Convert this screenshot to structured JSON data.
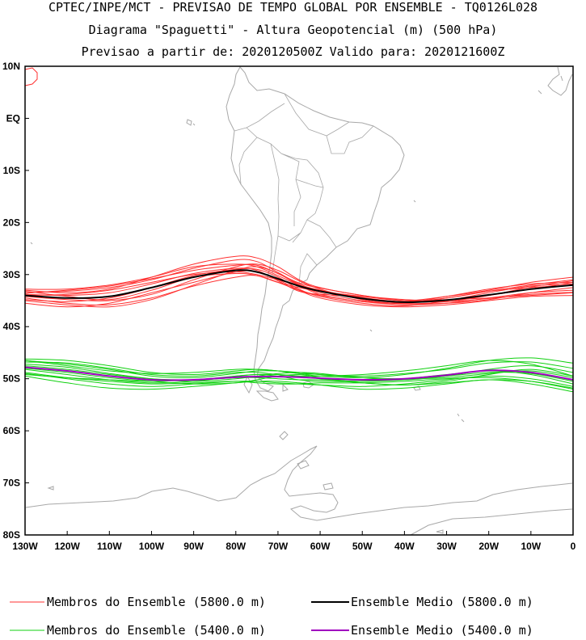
{
  "header": {
    "line1": "CPTEC/INPE/MCT - PREVISAO DE TEMPO GLOBAL POR ENSEMBLE - TQ0126L028",
    "line2": "Diagrama \"Spaguetti\" - Altura Geopotencial (m) (500 hPa)",
    "line3": "Previsao a partir de: 2020120500Z  Valido para: 2020121600Z"
  },
  "colors": {
    "members_5800": "#ff3030",
    "mean_5800": "#000000",
    "members_5400": "#10d010",
    "mean_5400": "#a000c0",
    "coast": "#a8a8a8"
  },
  "chart_data": {
    "type": "line",
    "title": "Diagrama \"Spaguetti\" - Altura Geopotencial (m) (500 hPa)",
    "map": "South America / South Atlantic",
    "xlim": [
      -130,
      0
    ],
    "ylim": [
      -80,
      10
    ],
    "x_ticks": [
      {
        "value": -130,
        "label": "130W"
      },
      {
        "value": -120,
        "label": "120W"
      },
      {
        "value": -110,
        "label": "110W"
      },
      {
        "value": -100,
        "label": "100W"
      },
      {
        "value": -90,
        "label": "90W"
      },
      {
        "value": -80,
        "label": "80W"
      },
      {
        "value": -70,
        "label": "70W"
      },
      {
        "value": -60,
        "label": "60W"
      },
      {
        "value": -50,
        "label": "50W"
      },
      {
        "value": -40,
        "label": "40W"
      },
      {
        "value": -30,
        "label": "30W"
      },
      {
        "value": -20,
        "label": "20W"
      },
      {
        "value": -10,
        "label": "10W"
      },
      {
        "value": 0,
        "label": "0"
      }
    ],
    "y_ticks": [
      {
        "value": 10,
        "label": "10N"
      },
      {
        "value": 0,
        "label": "EQ"
      },
      {
        "value": -10,
        "label": "10S"
      },
      {
        "value": -20,
        "label": "20S"
      },
      {
        "value": -30,
        "label": "30S"
      },
      {
        "value": -40,
        "label": "40S"
      },
      {
        "value": -50,
        "label": "50S"
      },
      {
        "value": -60,
        "label": "60S"
      },
      {
        "value": -70,
        "label": "70S"
      },
      {
        "value": -80,
        "label": "80S"
      }
    ],
    "x": [
      -130,
      -120,
      -110,
      -100,
      -90,
      -80,
      -75,
      -70,
      -65,
      -60,
      -50,
      -40,
      -30,
      -20,
      -10,
      0
    ],
    "series": [
      {
        "name": "Ensemble Medio (5800.0 m)",
        "group": "mean5800",
        "values": [
          -34,
          -34.5,
          -34.2,
          -32.5,
          -30.5,
          -29.2,
          -29.5,
          -30.8,
          -32.2,
          -33.2,
          -34.6,
          -35.3,
          -34.9,
          -33.9,
          -32.8,
          -32
        ]
      },
      {
        "name": "",
        "group": "m5800",
        "values": [
          -33.5,
          -33.2,
          -32.5,
          -31,
          -28.8,
          -27.2,
          -27.5,
          -29.6,
          -31.8,
          -33,
          -34.4,
          -35.2,
          -34.5,
          -33.2,
          -32,
          -31
        ]
      },
      {
        "name": "",
        "group": "m5800",
        "values": [
          -34.5,
          -35.5,
          -35.8,
          -34.5,
          -32.2,
          -30.5,
          -30.2,
          -31.5,
          -33,
          -34,
          -35.2,
          -35.8,
          -35.5,
          -34.5,
          -33.5,
          -33
        ]
      },
      {
        "name": "",
        "group": "m5800",
        "values": [
          -33,
          -33.5,
          -32.8,
          -30.5,
          -28,
          -26.5,
          -26.8,
          -28.5,
          -31,
          -32.5,
          -34,
          -35,
          -34.2,
          -33,
          -31.5,
          -30.5
        ]
      },
      {
        "name": "",
        "group": "m5800",
        "values": [
          -35.5,
          -36.2,
          -35.5,
          -33.5,
          -31.5,
          -29.5,
          -29.5,
          -31,
          -33,
          -34.5,
          -35.8,
          -36.2,
          -35.8,
          -35,
          -34.2,
          -34
        ]
      },
      {
        "name": "",
        "group": "m5800",
        "values": [
          -32.8,
          -32.8,
          -32,
          -30.5,
          -28.5,
          -28,
          -28.5,
          -30.2,
          -32,
          -33,
          -34.5,
          -35.5,
          -35.5,
          -34.8,
          -33.5,
          -32.5
        ]
      },
      {
        "name": "",
        "group": "m5800",
        "values": [
          -34.2,
          -34.8,
          -35,
          -33.8,
          -31,
          -28.5,
          -28,
          -29.2,
          -31.2,
          -32.8,
          -34.8,
          -35.5,
          -34.5,
          -33.2,
          -32.5,
          -32
        ]
      },
      {
        "name": "",
        "group": "m5800",
        "values": [
          -33.8,
          -34,
          -33.5,
          -31.8,
          -29.8,
          -28.8,
          -29.2,
          -31.2,
          -33.2,
          -33.8,
          -34.2,
          -34.8,
          -35,
          -34,
          -32.8,
          -31.5
        ]
      },
      {
        "name": "",
        "group": "m5800",
        "values": [
          -34.8,
          -35.2,
          -34.5,
          -32.5,
          -30.2,
          -29,
          -29,
          -30.5,
          -32.8,
          -34.2,
          -35.5,
          -36,
          -35,
          -33.5,
          -32.2,
          -31.8
        ]
      },
      {
        "name": "",
        "group": "m5800",
        "values": [
          -33.2,
          -34.2,
          -34.8,
          -33,
          -30.5,
          -29.8,
          -30.2,
          -31.5,
          -32.5,
          -33.2,
          -34.2,
          -35,
          -34.8,
          -34.5,
          -34,
          -33.5
        ]
      },
      {
        "name": "",
        "group": "m5800",
        "values": [
          -34,
          -33.8,
          -33,
          -31.5,
          -30,
          -29.5,
          -30,
          -31,
          -32.2,
          -33.5,
          -35,
          -35.6,
          -35.2,
          -34,
          -32.4,
          -31.2
        ]
      },
      {
        "name": "",
        "group": "m5800",
        "values": [
          -35,
          -35.8,
          -36.2,
          -34.8,
          -32,
          -29.2,
          -28.5,
          -29.8,
          -32,
          -33.8,
          -35.2,
          -35.4,
          -34.2,
          -32.8,
          -31.8,
          -31.5
        ]
      },
      {
        "name": "",
        "group": "m5800",
        "values": [
          -33.6,
          -33,
          -32.2,
          -30.8,
          -29.2,
          -28.2,
          -28.2,
          -29.8,
          -31.6,
          -32.6,
          -34,
          -35,
          -35.2,
          -34.6,
          -33.8,
          -33.4
        ]
      },
      {
        "name": "Ensemble Medio (5400.0 m)",
        "group": "mean5400",
        "values": [
          -47.8,
          -48.5,
          -49.5,
          -50.2,
          -50.2,
          -49.7,
          -49.6,
          -49.6,
          -49.7,
          -49.9,
          -50.2,
          -50,
          -49.3,
          -48.4,
          -48.8,
          -50.2
        ]
      },
      {
        "name": "",
        "group": "m5400",
        "values": [
          -46.5,
          -47.2,
          -48.2,
          -49.5,
          -49.8,
          -49,
          -48.5,
          -48.5,
          -48.8,
          -49.2,
          -49.5,
          -49,
          -48.2,
          -47,
          -46.8,
          -48
        ]
      },
      {
        "name": "",
        "group": "m5400",
        "values": [
          -49,
          -50,
          -51,
          -51.5,
          -51,
          -50.5,
          -50.5,
          -50.8,
          -51,
          -51.2,
          -51.5,
          -51,
          -50.2,
          -49.5,
          -50,
          -51.5
        ]
      },
      {
        "name": "",
        "group": "m5400",
        "values": [
          -46.2,
          -46.5,
          -47.5,
          -48.8,
          -49.2,
          -48.5,
          -48.2,
          -48.5,
          -49,
          -49.5,
          -49.8,
          -49.2,
          -48,
          -46.5,
          -46,
          -47
        ]
      },
      {
        "name": "",
        "group": "m5400",
        "values": [
          -49.5,
          -50.8,
          -51.8,
          -52,
          -51.5,
          -50.8,
          -50.5,
          -50.5,
          -50.8,
          -51.2,
          -52,
          -51.8,
          -51,
          -50.2,
          -51,
          -52.5
        ]
      },
      {
        "name": "",
        "group": "m5400",
        "values": [
          -47.2,
          -47.8,
          -49,
          -50,
          -50.5,
          -50,
          -49.5,
          -49,
          -48.8,
          -49,
          -49.8,
          -50.2,
          -49.5,
          -48.2,
          -47.5,
          -48.8
        ]
      },
      {
        "name": "",
        "group": "m5400",
        "values": [
          -48.2,
          -49.2,
          -50.2,
          -50.8,
          -50.5,
          -49.5,
          -49.2,
          -49.5,
          -50.2,
          -50.5,
          -50.5,
          -50,
          -49.2,
          -48.5,
          -49.2,
          -51
        ]
      },
      {
        "name": "",
        "group": "m5400",
        "values": [
          -46.8,
          -47,
          -48,
          -49.2,
          -49.5,
          -48.8,
          -48.8,
          -49.2,
          -49.5,
          -49.5,
          -49.2,
          -48.5,
          -47.5,
          -46.5,
          -47.2,
          -49.5
        ]
      },
      {
        "name": "",
        "group": "m5400",
        "values": [
          -48.8,
          -49.8,
          -50.5,
          -51,
          -50.8,
          -50.5,
          -50.8,
          -51,
          -51,
          -50.8,
          -50.8,
          -50.5,
          -50,
          -49.8,
          -50.5,
          -52
        ]
      },
      {
        "name": "",
        "group": "m5400",
        "values": [
          -47.5,
          -48.2,
          -49.2,
          -50,
          -50.2,
          -49.8,
          -49.8,
          -50,
          -50.2,
          -50.2,
          -50.5,
          -50.2,
          -49.5,
          -48.8,
          -49,
          -50.5
        ]
      },
      {
        "name": "",
        "group": "m5400",
        "values": [
          -48,
          -48.8,
          -49.8,
          -50.5,
          -51,
          -50.8,
          -50.2,
          -49.5,
          -49.2,
          -49.8,
          -50.8,
          -51.2,
          -50.5,
          -49.2,
          -48.2,
          -49.5
        ]
      },
      {
        "name": "",
        "group": "m5400",
        "values": [
          -46.5,
          -47.5,
          -48.5,
          -49,
          -48.8,
          -48.2,
          -48.2,
          -48.5,
          -49,
          -49.2,
          -49.8,
          -50,
          -49.8,
          -49,
          -48.5,
          -49.8
        ]
      },
      {
        "name": "",
        "group": "m5400",
        "values": [
          -49.2,
          -49.8,
          -50.2,
          -50.5,
          -50.2,
          -49.5,
          -49.2,
          -49.2,
          -49.5,
          -50,
          -50.8,
          -51.2,
          -50.8,
          -50.2,
          -50.5,
          -51.8
        ]
      }
    ],
    "legend": [
      {
        "label": "Membros do Ensemble (5800.0 m)",
        "color": "#ff3030",
        "width": 1,
        "position": "bottom-left"
      },
      {
        "label": "Ensemble Medio (5800.0 m)",
        "color": "#000000",
        "width": 2,
        "position": "bottom-right"
      },
      {
        "label": "Membros do Ensemble (5400.0 m)",
        "color": "#10d010",
        "width": 1,
        "position": "bottom-left"
      },
      {
        "label": "Ensemble Medio (5400.0 m)",
        "color": "#a000c0",
        "width": 2,
        "position": "bottom-right"
      }
    ]
  }
}
